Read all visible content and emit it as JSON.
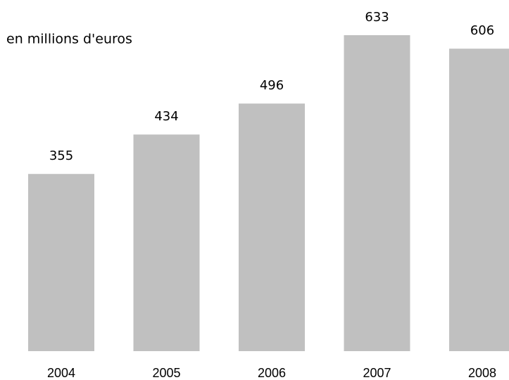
{
  "chart_data": {
    "type": "bar",
    "subtitle": "en millions d'euros",
    "categories": [
      "2004",
      "2005",
      "2006",
      "2007",
      "2008"
    ],
    "values": [
      355,
      434,
      496,
      633,
      606
    ],
    "color": "#c0c0c0"
  }
}
